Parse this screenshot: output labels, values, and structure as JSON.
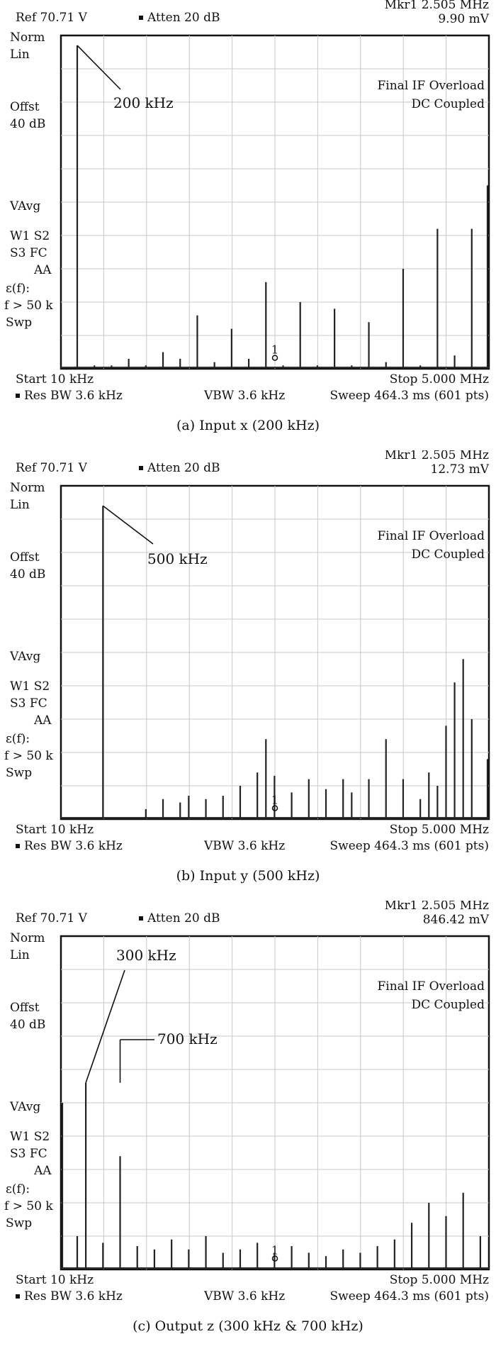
{
  "panels": [
    {
      "header": {
        "ref": "Ref 70.71 V",
        "atten": "Atten 20 dB",
        "marker_freq": "Mkr1 2.505 MHz",
        "marker_value": "9.90 mV"
      },
      "side_labels": [
        "Norm",
        "Lin",
        "Offst",
        "40 dB",
        "VAvg",
        "W1 S2",
        "S3  FC",
        "AA",
        "ε(f):",
        "f > 50 k",
        "Swp"
      ],
      "notes": [
        "Final IF Overload",
        "DC Coupled"
      ],
      "footer": {
        "start": "Start 10 kHz",
        "stop": "Stop 5.000 MHz",
        "rbw": "Res BW 3.6 kHz",
        "vbw": "VBW 3.6 kHz",
        "sweep": "Sweep 464.3 ms (601 pts)"
      },
      "caption": "(a) Input x (200 kHz)"
    },
    {
      "header": {
        "ref": "Ref 70.71 V",
        "atten": "Atten 20 dB",
        "marker_freq": "Mkr1 2.505 MHz",
        "marker_value": "12.73 mV"
      },
      "side_labels": [
        "Norm",
        "Lin",
        "Offst",
        "40 dB",
        "VAvg",
        "W1 S2",
        "S3  FC",
        "AA",
        "ε(f):",
        "f > 50 k",
        "Swp"
      ],
      "notes": [
        "Final IF Overload",
        "DC Coupled"
      ],
      "footer": {
        "start": "Start 10 kHz",
        "stop": "Stop 5.000 MHz",
        "rbw": "Res BW 3.6 kHz",
        "vbw": "VBW 3.6 kHz",
        "sweep": "Sweep 464.3 ms (601 pts)"
      },
      "caption": "(b) Input y  (500 kHz)"
    },
    {
      "header": {
        "ref": "Ref 70.71 V",
        "atten": "Atten 20 dB",
        "marker_freq": "Mkr1 2.505 MHz",
        "marker_value": "846.42 mV"
      },
      "side_labels": [
        "Norm",
        "Lin",
        "Offst",
        "40 dB",
        "VAvg",
        "W1 S2",
        "S3  FC",
        "AA",
        "ε(f):",
        "f > 50 k",
        "Swp"
      ],
      "notes": [
        "Final IF Overload",
        "DC Coupled"
      ],
      "footer": {
        "start": "Start 10 kHz",
        "stop": "Stop 5.000 MHz",
        "rbw": "Res BW 3.6 kHz",
        "vbw": "VBW 3.6 kHz",
        "sweep": "Sweep 464.3 ms (601 pts)"
      },
      "caption": "(c) Output z (300 kHz & 700 kHz)"
    }
  ],
  "chart_data": [
    {
      "type": "bar",
      "x_range_khz": [
        10,
        5000
      ],
      "y_range_fraction": [
        0,
        1
      ],
      "grid": true,
      "marker": {
        "label": "1",
        "x_khz": 2505,
        "y": 0.02
      },
      "annotations": [
        {
          "text": "200 kHz",
          "x_khz": 200,
          "y": 0.97
        }
      ],
      "peaks": {
        "x_khz": [
          200,
          400,
          600,
          800,
          1000,
          1200,
          1400,
          1600,
          1800,
          2000,
          2200,
          2400,
          2600,
          2800,
          3000,
          3200,
          3400,
          3600,
          3800,
          4000,
          4200,
          4400,
          4600,
          4800,
          5000
        ],
        "y": [
          0.97,
          0.01,
          0.01,
          0.03,
          0.01,
          0.05,
          0.03,
          0.16,
          0.02,
          0.12,
          0.03,
          0.26,
          0.01,
          0.2,
          0.01,
          0.18,
          0.01,
          0.14,
          0.02,
          0.3,
          0.01,
          0.42,
          0.04,
          0.42,
          0.55
        ]
      }
    },
    {
      "type": "bar",
      "x_range_khz": [
        10,
        5000
      ],
      "y_range_fraction": [
        0,
        1
      ],
      "grid": true,
      "marker": {
        "label": "1",
        "x_khz": 2505,
        "y": 0.02
      },
      "annotations": [
        {
          "text": "500 kHz",
          "x_khz": 500,
          "y": 0.94
        }
      ],
      "peaks": {
        "x_khz": [
          500,
          1000,
          1200,
          1400,
          1500,
          1700,
          1900,
          2100,
          2300,
          2400,
          2500,
          2700,
          2900,
          3100,
          3300,
          3400,
          3600,
          3800,
          4000,
          4200,
          4300,
          4400,
          4500,
          4600,
          4700,
          4800,
          5000
        ],
        "y": [
          0.94,
          0.03,
          0.06,
          0.05,
          0.07,
          0.06,
          0.07,
          0.1,
          0.14,
          0.24,
          0.13,
          0.08,
          0.12,
          0.09,
          0.12,
          0.08,
          0.12,
          0.24,
          0.12,
          0.06,
          0.14,
          0.1,
          0.28,
          0.41,
          0.48,
          0.3,
          0.18
        ]
      }
    },
    {
      "type": "bar",
      "x_range_khz": [
        10,
        5000
      ],
      "y_range_fraction": [
        0,
        1
      ],
      "grid": true,
      "marker": {
        "label": "1",
        "x_khz": 2505,
        "y": 0.02
      },
      "annotations": [
        {
          "text": "300 kHz",
          "x_khz": 300,
          "y": 0.56
        },
        {
          "text": "700 kHz",
          "x_khz": 700,
          "y": 0.56
        }
      ],
      "peaks": {
        "x_khz": [
          10,
          200,
          300,
          500,
          700,
          900,
          1100,
          1300,
          1500,
          1700,
          1900,
          2100,
          2300,
          2500,
          2700,
          2900,
          3100,
          3300,
          3500,
          3700,
          3900,
          4100,
          4300,
          4500,
          4700,
          4900
        ],
        "y": [
          0.5,
          0.1,
          0.56,
          0.08,
          0.34,
          0.07,
          0.06,
          0.09,
          0.06,
          0.1,
          0.05,
          0.06,
          0.08,
          0.05,
          0.07,
          0.05,
          0.04,
          0.06,
          0.05,
          0.07,
          0.09,
          0.14,
          0.2,
          0.16,
          0.23,
          0.1
        ]
      }
    }
  ]
}
